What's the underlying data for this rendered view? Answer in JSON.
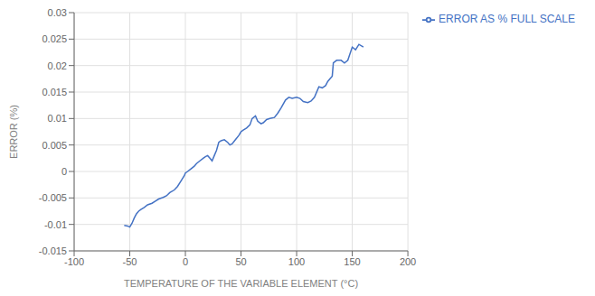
{
  "chart_data": {
    "type": "line",
    "xlabel": "TEMPERATURE OF THE VARIABLE ELEMENT (°C)",
    "ylabel": "ERROR (%)",
    "x": [
      -55,
      -52,
      -50,
      -48,
      -46,
      -44,
      -42,
      -40,
      -37,
      -34,
      -30,
      -27,
      -24,
      -20,
      -17,
      -14,
      -10,
      -7,
      -4,
      -1,
      0,
      2,
      5,
      8,
      10,
      13,
      16,
      18,
      20,
      22,
      24,
      26,
      28,
      30,
      32,
      35,
      38,
      40,
      42,
      45,
      48,
      50,
      52,
      55,
      58,
      60,
      63,
      65,
      68,
      70,
      73,
      76,
      80,
      83,
      86,
      90,
      93,
      96,
      100,
      103,
      106,
      110,
      113,
      116,
      120,
      123,
      126,
      128,
      130,
      132,
      133,
      136,
      140,
      143,
      146,
      150,
      153,
      156,
      160
    ],
    "series": [
      {
        "name": "ERROR AS % FULL SCALE",
        "color": "#4472C4",
        "values": [
          -0.0102,
          -0.0103,
          -0.0105,
          -0.0098,
          -0.0088,
          -0.008,
          -0.0075,
          -0.0072,
          -0.0068,
          -0.0063,
          -0.006,
          -0.0056,
          -0.0052,
          -0.0049,
          -0.0046,
          -0.004,
          -0.0035,
          -0.0028,
          -0.0018,
          -0.0008,
          -0.0003,
          0.0,
          0.0005,
          0.001,
          0.0015,
          0.002,
          0.0025,
          0.0028,
          0.003,
          0.0025,
          0.002,
          0.003,
          0.004,
          0.0055,
          0.0058,
          0.006,
          0.0055,
          0.005,
          0.0052,
          0.006,
          0.0068,
          0.0075,
          0.0078,
          0.0082,
          0.0088,
          0.01,
          0.0105,
          0.0095,
          0.009,
          0.0092,
          0.0098,
          0.01,
          0.0102,
          0.011,
          0.012,
          0.0135,
          0.014,
          0.0138,
          0.014,
          0.0138,
          0.0132,
          0.013,
          0.0133,
          0.014,
          0.016,
          0.0158,
          0.0162,
          0.017,
          0.0175,
          0.018,
          0.0205,
          0.021,
          0.021,
          0.0205,
          0.021,
          0.0235,
          0.023,
          0.024,
          0.0235
        ]
      }
    ],
    "xlim": [
      -100,
      200
    ],
    "ylim": [
      -0.015,
      0.03
    ],
    "xticks": [
      -100,
      -50,
      0,
      50,
      100,
      150,
      200
    ],
    "yticks": [
      -0.015,
      -0.01,
      -0.005,
      0,
      0.005,
      0.01,
      0.015,
      0.02,
      0.025,
      0.03
    ],
    "grid": true,
    "legend": "right"
  }
}
